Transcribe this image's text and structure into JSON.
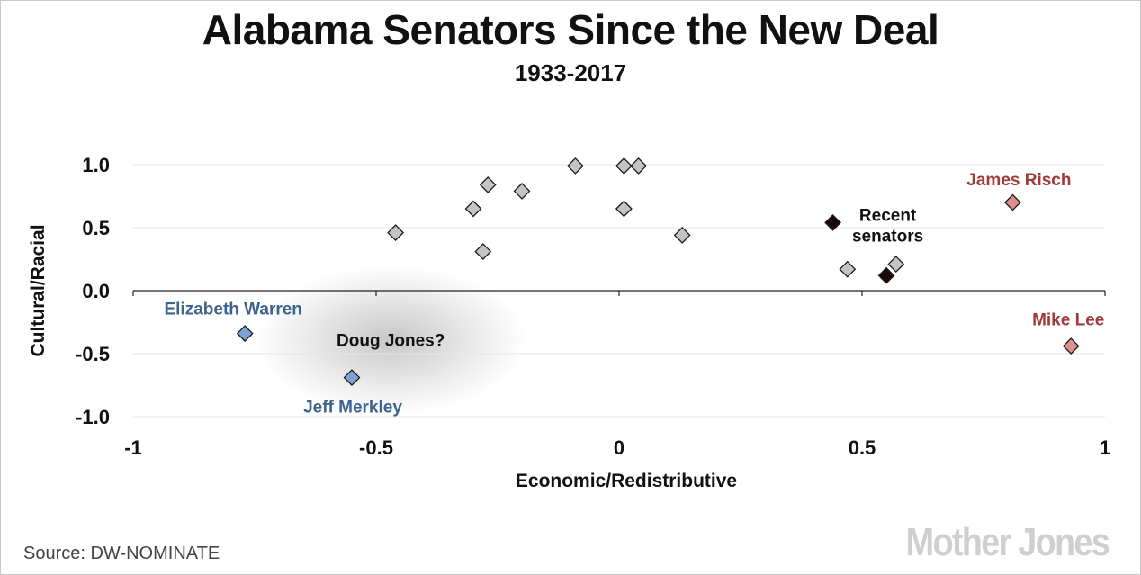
{
  "header": {
    "title": "Alabama Senators Since the New Deal",
    "subtitle": "1933-2017"
  },
  "footer": {
    "source": "Source:  DW-NOMINATE",
    "brand": "Mother Jones"
  },
  "chart_data": {
    "type": "scatter",
    "title": "Alabama Senators Since the New Deal",
    "subtitle": "1933-2017",
    "xlabel": "Economic/Redistributive",
    "ylabel": "Cultural/Racial",
    "xlim": [
      -1,
      1
    ],
    "ylim": [
      -1.0,
      1.0
    ],
    "xticks": [
      -1,
      -0.5,
      0,
      0.5,
      1
    ],
    "xtick_labels": [
      "-1",
      "-0.5",
      "0",
      "0.5",
      "1"
    ],
    "yticks": [
      1.0,
      0.5,
      0.0,
      -0.5,
      -1.0
    ],
    "ytick_labels": [
      "1.0",
      "0.5",
      "0.0",
      "-0.5",
      "-1.0"
    ],
    "grid": "horizontal",
    "colors": {
      "historic": "#c4c4c4",
      "recent": "#1a0808",
      "democrat": "#7ea3d2",
      "republican": "#dd8e8e",
      "democrat_label": "#3e6290",
      "republican_label": "#a13a3a"
    },
    "series": [
      {
        "group": "historic",
        "points": [
          {
            "x": -0.46,
            "y": 0.46
          },
          {
            "x": -0.3,
            "y": 0.65
          },
          {
            "x": -0.27,
            "y": 0.84
          },
          {
            "x": -0.28,
            "y": 0.31
          },
          {
            "x": -0.2,
            "y": 0.79
          },
          {
            "x": -0.09,
            "y": 0.99
          },
          {
            "x": 0.01,
            "y": 0.99
          },
          {
            "x": 0.04,
            "y": 0.99
          },
          {
            "x": 0.01,
            "y": 0.65
          },
          {
            "x": 0.13,
            "y": 0.44
          },
          {
            "x": 0.47,
            "y": 0.17
          },
          {
            "x": 0.57,
            "y": 0.21
          }
        ]
      },
      {
        "group": "recent",
        "label": "Recent senators",
        "points": [
          {
            "x": 0.44,
            "y": 0.54
          },
          {
            "x": 0.55,
            "y": 0.12
          }
        ]
      },
      {
        "group": "democrat",
        "points": [
          {
            "x": -0.77,
            "y": -0.34,
            "label": "Elizabeth Warren"
          },
          {
            "x": -0.55,
            "y": -0.69,
            "label": "Jeff Merkley"
          }
        ]
      },
      {
        "group": "republican",
        "points": [
          {
            "x": 0.81,
            "y": 0.7,
            "label": "James Risch"
          },
          {
            "x": 0.93,
            "y": -0.44,
            "label": "Mike Lee"
          }
        ]
      }
    ],
    "annotations": [
      {
        "text": "Recent senators",
        "lines": [
          "Recent",
          "senators"
        ]
      },
      {
        "text": "Doug Jones?",
        "near": {
          "x": -0.47,
          "y": -0.39
        }
      }
    ]
  }
}
